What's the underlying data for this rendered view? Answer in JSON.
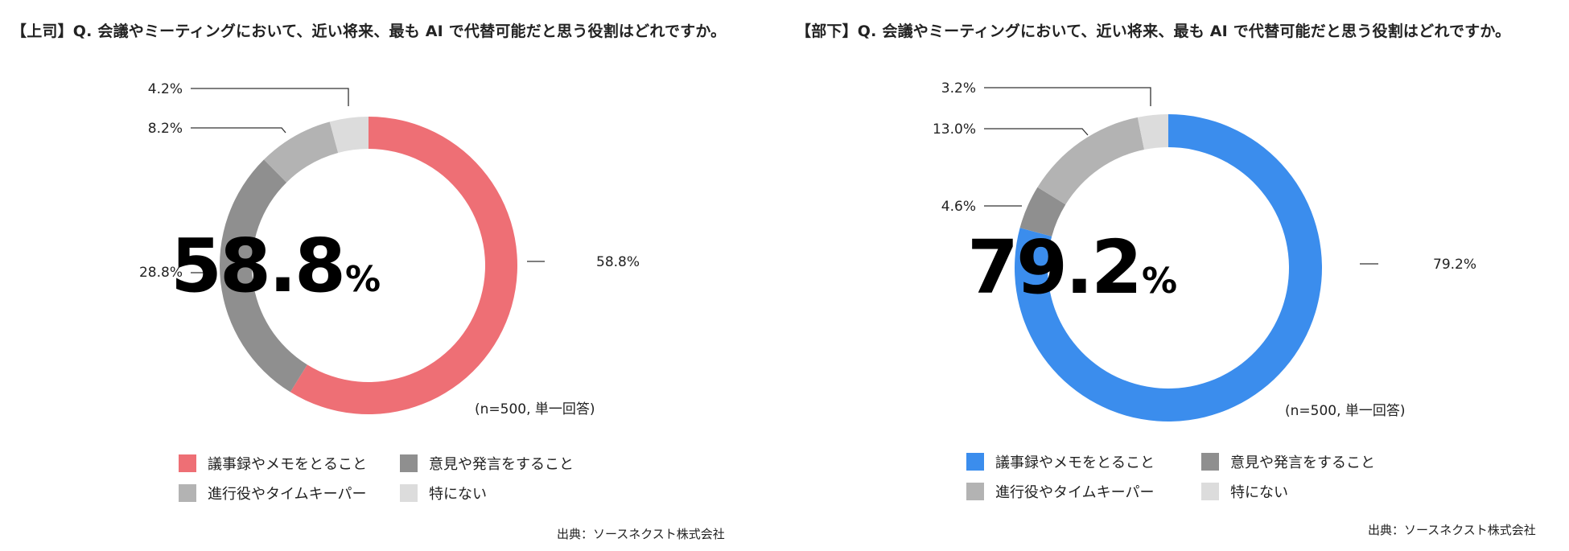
{
  "chart_data": [
    {
      "type": "pie",
      "title": "【上司】Q. 会議やミーティングにおいて、近い将来、最も AI で代替可能だと思う役割はどれですか。",
      "center_value": "58.8",
      "center_unit": "%",
      "sample_note": "(n=500, 単一回答)",
      "source": "出典：ソースネクスト株式会社",
      "accent": "#ee6f75",
      "categories": [
        "議事録やメモをとること",
        "意見や発言をすること",
        "進行役やタイムキーパー",
        "特にない"
      ],
      "values": [
        58.8,
        28.8,
        8.2,
        4.2
      ],
      "value_labels": [
        "58.8%",
        "28.8%",
        "8.2%",
        "4.2%"
      ],
      "colors": [
        "#ee6f75",
        "#8f8f8f",
        "#b3b3b3",
        "#dcdcdc"
      ],
      "legend_position": "bottom"
    },
    {
      "type": "pie",
      "title": "【部下】Q. 会議やミーティングにおいて、近い将来、最も AI で代替可能だと思う役割はどれですか。",
      "center_value": "79.2",
      "center_unit": "%",
      "sample_note": "(n=500, 単一回答)",
      "source": "出典：ソースネクスト株式会社",
      "accent": "#3b8ded",
      "categories": [
        "議事録やメモをとること",
        "意見や発言をすること",
        "進行役やタイムキーパー",
        "特にない"
      ],
      "values": [
        79.2,
        4.6,
        13.0,
        3.2
      ],
      "value_labels": [
        "79.2%",
        "4.6%",
        "13.0%",
        "3.2%"
      ],
      "colors": [
        "#3b8ded",
        "#8f8f8f",
        "#b3b3b3",
        "#dcdcdc"
      ],
      "legend_position": "bottom"
    }
  ]
}
